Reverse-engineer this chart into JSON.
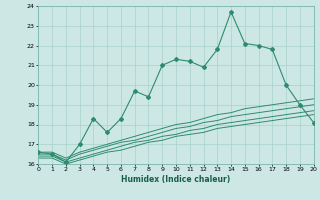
{
  "xlabel": "Humidex (Indice chaleur)",
  "x": [
    0,
    1,
    2,
    3,
    4,
    5,
    6,
    7,
    8,
    9,
    10,
    11,
    12,
    13,
    14,
    15,
    16,
    17,
    18,
    19,
    20
  ],
  "main_y": [
    16.6,
    16.5,
    16.1,
    17.0,
    18.3,
    17.6,
    18.3,
    19.7,
    19.4,
    21.0,
    21.3,
    21.2,
    20.9,
    21.8,
    23.7,
    22.1,
    22.0,
    21.8,
    20.0,
    19.0,
    18.1
  ],
  "line1_y": [
    16.6,
    16.6,
    16.3,
    16.6,
    16.8,
    17.0,
    17.2,
    17.4,
    17.6,
    17.8,
    18.0,
    18.1,
    18.3,
    18.5,
    18.6,
    18.8,
    18.9,
    19.0,
    19.1,
    19.2,
    19.3
  ],
  "line2_y": [
    16.5,
    16.5,
    16.2,
    16.5,
    16.7,
    16.9,
    17.1,
    17.2,
    17.4,
    17.6,
    17.8,
    17.9,
    18.1,
    18.2,
    18.4,
    18.5,
    18.6,
    18.7,
    18.8,
    18.9,
    19.0
  ],
  "line3_y": [
    16.4,
    16.4,
    16.1,
    16.3,
    16.5,
    16.7,
    16.9,
    17.1,
    17.2,
    17.4,
    17.5,
    17.7,
    17.8,
    18.0,
    18.1,
    18.2,
    18.3,
    18.4,
    18.5,
    18.6,
    18.7
  ],
  "line4_y": [
    16.3,
    16.3,
    16.0,
    16.2,
    16.4,
    16.6,
    16.7,
    16.9,
    17.1,
    17.2,
    17.4,
    17.5,
    17.6,
    17.8,
    17.9,
    18.0,
    18.1,
    18.2,
    18.3,
    18.4,
    18.5
  ],
  "line_color": "#2e8b6e",
  "bg_color": "#cde8e4",
  "grid_color": "#afd4cf",
  "ylim": [
    16,
    24
  ],
  "xlim": [
    0,
    20
  ],
  "yticks": [
    16,
    17,
    18,
    19,
    20,
    21,
    22,
    23,
    24
  ],
  "xticks": [
    0,
    1,
    2,
    3,
    4,
    5,
    6,
    7,
    8,
    9,
    10,
    11,
    12,
    13,
    14,
    15,
    16,
    17,
    18,
    19,
    20
  ]
}
